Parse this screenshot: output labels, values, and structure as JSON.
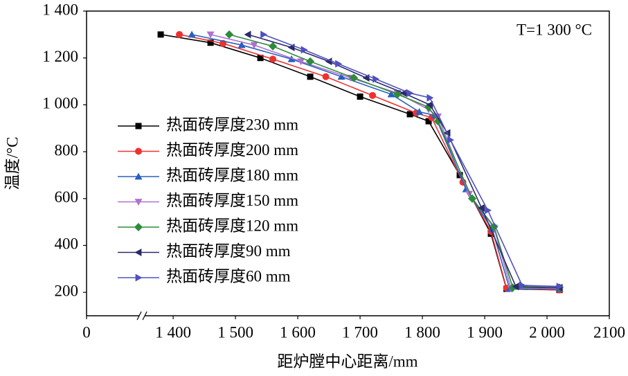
{
  "chart_data": {
    "type": "line",
    "annotation": "T=1 300 °C",
    "x_label": "距炉膛中心距离/mm",
    "y_label": "温度/°C",
    "xlim": [
      0,
      2100
    ],
    "xbreak": [
      89,
      1350
    ],
    "xticks": [
      0,
      {
        "value": 1400,
        "label": "1 400"
      },
      {
        "value": 1500,
        "label": "1 500"
      },
      {
        "value": 1600,
        "label": "1 600"
      },
      {
        "value": 1700,
        "label": "1 700"
      },
      {
        "value": 1800,
        "label": "1 800"
      },
      {
        "value": 1900,
        "label": "1 900"
      },
      {
        "value": 2000,
        "label": "2 000"
      },
      2100
    ],
    "ylim": [
      100,
      1400
    ],
    "yticks": [
      200,
      400,
      600,
      800,
      {
        "value": 1000,
        "label": "1 000"
      },
      {
        "value": 1200,
        "label": "1 200"
      },
      {
        "value": 1400,
        "label": "1 400"
      }
    ],
    "legend": "upper left",
    "series": [
      {
        "name": "热面砖厚度230 mm",
        "color": "#000000",
        "marker": "square",
        "x": [
          1380,
          1460,
          1540,
          1620,
          1700,
          1780,
          1810,
          1860,
          1910,
          1935,
          2020
        ],
        "values": [
          1300,
          1265,
          1200,
          1120,
          1035,
          960,
          930,
          700,
          450,
          215,
          210
        ]
      },
      {
        "name": "热面砖厚度200 mm",
        "color": "#f03030",
        "marker": "circle",
        "x": [
          1410,
          1480,
          1560,
          1645,
          1720,
          1790,
          1815,
          1865,
          1910,
          1935,
          2020
        ],
        "values": [
          1300,
          1262,
          1195,
          1120,
          1040,
          965,
          945,
          670,
          460,
          218,
          210
        ]
      },
      {
        "name": "热面砖厚度180 mm",
        "color": "#2860c0",
        "marker": "triangle-up",
        "x": [
          1430,
          1510,
          1590,
          1670,
          1750,
          1795,
          1820,
          1870,
          1912,
          1940,
          2020
        ],
        "values": [
          1300,
          1255,
          1195,
          1120,
          1045,
          970,
          955,
          640,
          470,
          215,
          215
        ]
      },
      {
        "name": "热面砖厚度150 mm",
        "color": "#b070d0",
        "marker": "triangle-down",
        "x": [
          1460,
          1530,
          1605,
          1685,
          1760,
          1810,
          1825,
          1875,
          1915,
          1942,
          2020
        ],
        "values": [
          1300,
          1255,
          1185,
          1115,
          1050,
          980,
          950,
          620,
          475,
          218,
          218
        ]
      },
      {
        "name": "热面砖厚度120 mm",
        "color": "#2e8b3a",
        "marker": "diamond",
        "x": [
          1490,
          1560,
          1620,
          1690,
          1760,
          1810,
          1825,
          1880,
          1915,
          1945,
          2020
        ],
        "values": [
          1300,
          1250,
          1185,
          1115,
          1045,
          990,
          930,
          600,
          480,
          220,
          220
        ]
      },
      {
        "name": "热面砖厚度90 mm",
        "color": "#2a2a6a",
        "marker": "triangle-left",
        "x": [
          1520,
          1590,
          1650,
          1710,
          1770,
          1812,
          1840,
          1895,
          1950,
          2020
        ],
        "values": [
          1300,
          1245,
          1185,
          1115,
          1050,
          1000,
          880,
          560,
          225,
          220
        ]
      },
      {
        "name": "热面砖厚度60 mm",
        "color": "#5050c0",
        "marker": "triangle-right",
        "x": [
          1545,
          1610,
          1665,
          1725,
          1780,
          1812,
          1845,
          1905,
          1960,
          2020
        ],
        "values": [
          1300,
          1235,
          1175,
          1110,
          1050,
          1030,
          850,
          550,
          230,
          225
        ]
      }
    ]
  }
}
